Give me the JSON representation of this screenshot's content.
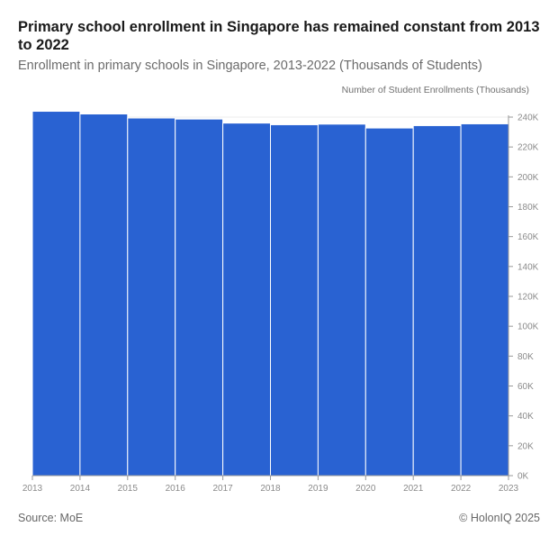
{
  "title": "Primary school enrollment in Singapore has remained constant from 2013 to 2022",
  "subtitle": "Enrollment in primary schools in Singapore, 2013-2022 (Thousands of Students)",
  "source": "Source: MoE",
  "credit": "© HolonIQ 2025",
  "colors": {
    "bar": "#2962d2",
    "axis": "#999999",
    "grid": "#eeeeee"
  },
  "chart_data": {
    "type": "bar",
    "title": "Primary school enrollment in Singapore has remained constant from 2013 to 2022",
    "subtitle": "Enrollment in primary schools in Singapore, 2013-2022 (Thousands of Students)",
    "ylabel": "Number of Student Enrollments (Thousands)",
    "xlabel": "",
    "ylim": [
      0,
      240
    ],
    "y_ticks": [
      "0K",
      "20K",
      "40K",
      "60K",
      "80K",
      "100K",
      "120K",
      "140K",
      "160K",
      "180K",
      "200K",
      "220K",
      "240K"
    ],
    "x_ticks": [
      "2013",
      "2014",
      "2015",
      "2016",
      "2017",
      "2018",
      "2019",
      "2020",
      "2021",
      "2022",
      "2023"
    ],
    "categories": [
      "2013",
      "2014",
      "2015",
      "2016",
      "2017",
      "2018",
      "2019",
      "2020",
      "2021",
      "2022"
    ],
    "values": [
      243.9,
      242.1,
      239.4,
      238.7,
      236.0,
      234.9,
      235.3,
      232.7,
      234.3,
      235.5
    ],
    "axis_side": "right",
    "grid": true
  }
}
